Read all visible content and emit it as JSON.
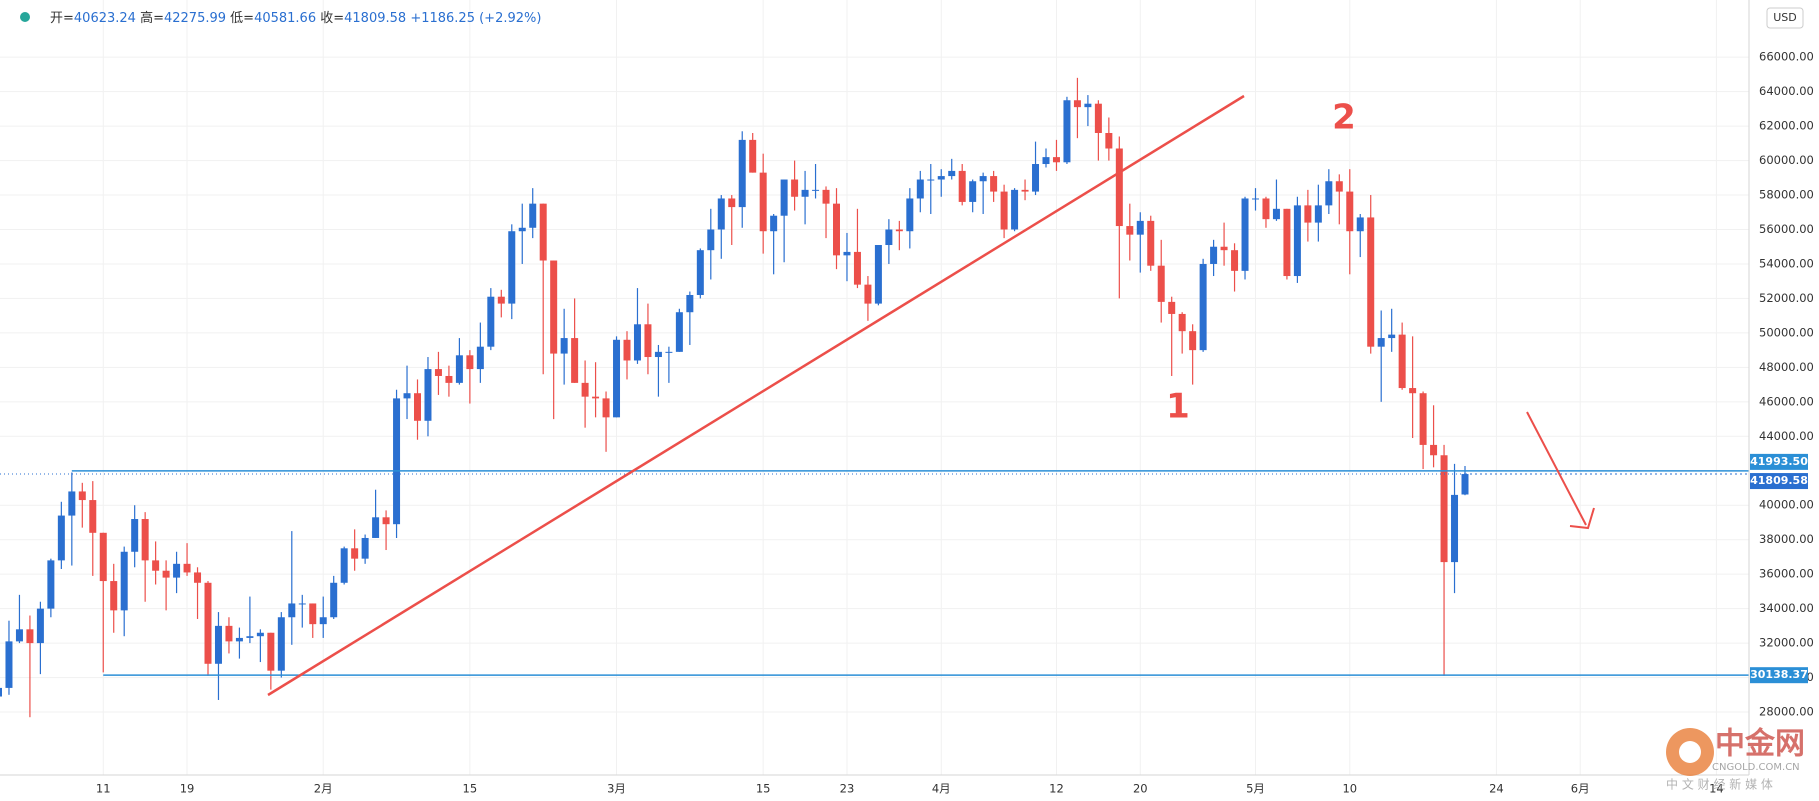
{
  "chart_data": {
    "type": "candlestick",
    "header": {
      "open_label": "开=",
      "high_label": "高=",
      "low_label": "低=",
      "close_label": "收=",
      "change": "+1186.25",
      "change_pct": "(+2.92%)"
    },
    "currency": "USD",
    "up_color": "#2a6fd0",
    "down_color": "#ec4f4a",
    "ylim": [
      26000,
      68000
    ],
    "yticks": [
      {
        "value": 28000,
        "label": "28000.00"
      },
      {
        "value": 30000,
        "label": "30000.00"
      },
      {
        "value": 32000,
        "label": "32000.00"
      },
      {
        "value": 34000,
        "label": "34000.00"
      },
      {
        "value": 36000,
        "label": "36000.00"
      },
      {
        "value": 38000,
        "label": "38000.00"
      },
      {
        "value": 40000,
        "label": "40000.00"
      },
      {
        "value": 44000,
        "label": "44000.00"
      },
      {
        "value": 46000,
        "label": "46000.00"
      },
      {
        "value": 48000,
        "label": "48000.00"
      },
      {
        "value": 50000,
        "label": "50000.00"
      },
      {
        "value": 52000,
        "label": "52000.00"
      },
      {
        "value": 54000,
        "label": "54000.00"
      },
      {
        "value": 56000,
        "label": "56000.00"
      },
      {
        "value": 58000,
        "label": "58000.00"
      },
      {
        "value": 60000,
        "label": "60000.00"
      },
      {
        "value": 62000,
        "label": "62000.00"
      },
      {
        "value": 64000,
        "label": "64000.00"
      },
      {
        "value": 66000,
        "label": "66000.00"
      }
    ],
    "xticks": [
      {
        "value": 10,
        "label": "11"
      },
      {
        "value": 18,
        "label": "19"
      },
      {
        "value": 31,
        "label": "2月"
      },
      {
        "value": 45,
        "label": "15"
      },
      {
        "value": 59,
        "label": "3月"
      },
      {
        "value": 73,
        "label": "15"
      },
      {
        "value": 81,
        "label": "23"
      },
      {
        "value": 90,
        "label": "4月"
      },
      {
        "value": 101,
        "label": "12"
      },
      {
        "value": 109,
        "label": "20"
      },
      {
        "value": 120,
        "label": "5月"
      },
      {
        "value": 129,
        "label": "10"
      },
      {
        "value": 143,
        "label": "24"
      },
      {
        "value": 151,
        "label": "6月"
      },
      {
        "value": 164,
        "label": "14"
      }
    ],
    "hlines": [
      {
        "value": 41993.5,
        "label": "41993.50"
      },
      {
        "value": 41809.58,
        "label": "41809.58"
      },
      {
        "value": 30138.37,
        "label": "30138.37"
      }
    ],
    "annotations": [
      "1",
      "2"
    ],
    "candles": [
      [
        28900,
        29600,
        28800,
        29400
      ],
      [
        29400,
        33300,
        29000,
        32100
      ],
      [
        32100,
        34800,
        32000,
        32800
      ],
      [
        32800,
        33600,
        27700,
        32000
      ],
      [
        32000,
        34400,
        30200,
        34000
      ],
      [
        34000,
        36900,
        33500,
        36800
      ],
      [
        36800,
        40200,
        36300,
        39400
      ],
      [
        39400,
        41900,
        36500,
        40800
      ],
      [
        40800,
        41300,
        38700,
        40300
      ],
      [
        40300,
        41400,
        35900,
        38400
      ],
      [
        38400,
        38400,
        30300,
        35600
      ],
      [
        35600,
        36600,
        32600,
        33900
      ],
      [
        33900,
        37600,
        32400,
        37300
      ],
      [
        37300,
        40000,
        36400,
        39200
      ],
      [
        39200,
        39600,
        34400,
        36800
      ],
      [
        36800,
        37900,
        35400,
        36200
      ],
      [
        36200,
        36800,
        33900,
        35800
      ],
      [
        35800,
        37300,
        34900,
        36600
      ],
      [
        36600,
        37800,
        35900,
        36100
      ],
      [
        36100,
        36400,
        33400,
        35500
      ],
      [
        35500,
        35600,
        30100,
        30800
      ],
      [
        30800,
        33800,
        28700,
        33000
      ],
      [
        33000,
        33500,
        31400,
        32100
      ],
      [
        32100,
        32900,
        31100,
        32300
      ],
      [
        32300,
        34700,
        32000,
        32400
      ],
      [
        32400,
        32800,
        30900,
        32600
      ],
      [
        32600,
        32600,
        29300,
        30400
      ],
      [
        30400,
        33800,
        30000,
        33500
      ],
      [
        33500,
        38500,
        31900,
        34300
      ],
      [
        34300,
        34800,
        32900,
        34300
      ],
      [
        34300,
        34300,
        32300,
        33100
      ],
      [
        33100,
        34700,
        32300,
        33500
      ],
      [
        33500,
        35900,
        33400,
        35500
      ],
      [
        35500,
        37600,
        35400,
        37500
      ],
      [
        37500,
        38600,
        36200,
        36900
      ],
      [
        36900,
        38300,
        36600,
        38100
      ],
      [
        38100,
        40900,
        38100,
        39300
      ],
      [
        39300,
        39700,
        37400,
        38900
      ],
      [
        38900,
        46700,
        38100,
        46200
      ],
      [
        46200,
        48100,
        45000,
        46500
      ],
      [
        46500,
        47300,
        43800,
        44900
      ],
      [
        44900,
        48600,
        44000,
        47900
      ],
      [
        47900,
        48900,
        46400,
        47500
      ],
      [
        47500,
        48100,
        46300,
        47100
      ],
      [
        47100,
        49700,
        47000,
        48700
      ],
      [
        48700,
        49000,
        45900,
        47900
      ],
      [
        47900,
        50600,
        47100,
        49200
      ],
      [
        49200,
        52600,
        49000,
        52100
      ],
      [
        52100,
        52500,
        50900,
        51700
      ],
      [
        51700,
        56300,
        50800,
        55900
      ],
      [
        55900,
        57500,
        54000,
        56100
      ],
      [
        56100,
        58400,
        55500,
        57500
      ],
      [
        57500,
        57500,
        47600,
        54200
      ],
      [
        54200,
        54200,
        45000,
        48800
      ],
      [
        48800,
        51400,
        47000,
        49700
      ],
      [
        49700,
        52000,
        47100,
        47100
      ],
      [
        47100,
        48400,
        44500,
        46300
      ],
      [
        46300,
        48300,
        45100,
        46200
      ],
      [
        46200,
        46600,
        43100,
        45100
      ],
      [
        45100,
        49800,
        45100,
        49600
      ],
      [
        49600,
        50100,
        47300,
        48400
      ],
      [
        48400,
        52600,
        48200,
        50500
      ],
      [
        50500,
        51700,
        47600,
        48600
      ],
      [
        48600,
        49300,
        46300,
        48900
      ],
      [
        48900,
        49200,
        47100,
        48900
      ],
      [
        48900,
        51400,
        48900,
        51200
      ],
      [
        51200,
        52400,
        49300,
        52200
      ],
      [
        52200,
        54900,
        52000,
        54800
      ],
      [
        54800,
        57200,
        53100,
        56000
      ],
      [
        56000,
        58000,
        54300,
        57800
      ],
      [
        57800,
        58000,
        55100,
        57300
      ],
      [
        57300,
        61700,
        56100,
        61200
      ],
      [
        61200,
        61600,
        59300,
        59300
      ],
      [
        59300,
        60400,
        54600,
        55900
      ],
      [
        55900,
        56900,
        53400,
        56800
      ],
      [
        56800,
        58900,
        54100,
        58900
      ],
      [
        58900,
        60000,
        57100,
        57900
      ],
      [
        57900,
        59400,
        56300,
        58300
      ],
      [
        58300,
        59800,
        57800,
        58300
      ],
      [
        58300,
        58500,
        55500,
        57500
      ],
      [
        57500,
        58400,
        53700,
        54500
      ],
      [
        54500,
        55800,
        53000,
        54700
      ],
      [
        54700,
        57200,
        52600,
        52800
      ],
      [
        52800,
        53300,
        50700,
        51700
      ],
      [
        51700,
        55100,
        51600,
        55100
      ],
      [
        55100,
        56600,
        54000,
        56000
      ],
      [
        56000,
        56500,
        54800,
        55900
      ],
      [
        55900,
        58400,
        54900,
        57800
      ],
      [
        57800,
        59400,
        57000,
        58900
      ],
      [
        58900,
        59800,
        56900,
        58900
      ],
      [
        58900,
        59500,
        57900,
        59100
      ],
      [
        59100,
        60100,
        58900,
        59400
      ],
      [
        59400,
        59800,
        57400,
        57600
      ],
      [
        57600,
        58900,
        57000,
        58800
      ],
      [
        58800,
        59300,
        56900,
        59100
      ],
      [
        59100,
        59400,
        57600,
        58200
      ],
      [
        58200,
        58600,
        55500,
        56000
      ],
      [
        56000,
        58400,
        55900,
        58300
      ],
      [
        58300,
        58900,
        57700,
        58200
      ],
      [
        58200,
        61100,
        58000,
        59800
      ],
      [
        59800,
        60700,
        59600,
        60200
      ],
      [
        60200,
        61200,
        59400,
        59900
      ],
      [
        59900,
        63700,
        59800,
        63500
      ],
      [
        63500,
        64800,
        61300,
        63100
      ],
      [
        63100,
        63800,
        62000,
        63300
      ],
      [
        63300,
        63500,
        60000,
        61600
      ],
      [
        61600,
        62500,
        60000,
        60700
      ],
      [
        60700,
        61400,
        52000,
        56200
      ],
      [
        56200,
        57500,
        54200,
        55700
      ],
      [
        55700,
        57000,
        53500,
        56500
      ],
      [
        56500,
        56800,
        53600,
        53900
      ],
      [
        53900,
        55400,
        50600,
        51800
      ],
      [
        51800,
        52100,
        47500,
        51100
      ],
      [
        51100,
        51200,
        48800,
        50100
      ],
      [
        50100,
        50500,
        47000,
        49000
      ],
      [
        49000,
        54300,
        48900,
        54000
      ],
      [
        54000,
        55400,
        53300,
        55000
      ],
      [
        55000,
        56400,
        53900,
        54800
      ],
      [
        54800,
        55200,
        52400,
        53600
      ],
      [
        53600,
        57900,
        53100,
        57800
      ],
      [
        57800,
        58400,
        57100,
        57800
      ],
      [
        57800,
        57900,
        56100,
        56600
      ],
      [
        56600,
        58900,
        56500,
        57200
      ],
      [
        57200,
        57200,
        53100,
        53300
      ],
      [
        53300,
        57900,
        52900,
        57400
      ],
      [
        57400,
        58300,
        55300,
        56400
      ],
      [
        56400,
        58600,
        55300,
        57400
      ],
      [
        57400,
        59500,
        56900,
        58800
      ],
      [
        58800,
        59200,
        56300,
        58200
      ],
      [
        58200,
        59500,
        53400,
        55900
      ],
      [
        55900,
        56900,
        54400,
        56700
      ],
      [
        56700,
        58000,
        48800,
        49200
      ],
      [
        49200,
        51300,
        46000,
        49700
      ],
      [
        49700,
        51400,
        48900,
        49900
      ],
      [
        49900,
        50600,
        46700,
        46800
      ],
      [
        46800,
        49800,
        43900,
        46500
      ],
      [
        46500,
        46600,
        42100,
        43500
      ],
      [
        43500,
        45800,
        42200,
        42900
      ],
      [
        42900,
        43500,
        30100,
        36700
      ],
      [
        36700,
        42400,
        34900,
        40600
      ],
      [
        40623.24,
        42275.99,
        40581.66,
        41809.58
      ]
    ]
  },
  "watermark": {
    "name": "中金网",
    "site": "CNGOLD.COM.CN",
    "slogan": "中 文 财 经 新 媒 体"
  }
}
